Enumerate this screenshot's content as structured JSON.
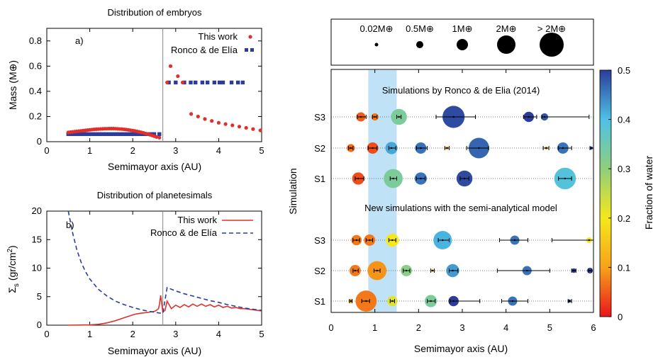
{
  "colors": {
    "red": "#e0302a",
    "blue": "#2b3d99",
    "band": "#bfe2f7",
    "vline": "#888888"
  },
  "chart_data": [
    {
      "type": "scatter",
      "panel_label": "a)",
      "title": "Distribution of embryos",
      "xlabel": "Semimayor axis (AU)",
      "ylabel": "Mass (M⊕)",
      "xlim": [
        0,
        5
      ],
      "ylim": [
        0,
        0.9
      ],
      "xticks": [
        "0",
        "1",
        "2",
        "3",
        "4",
        "5"
      ],
      "yticks": [
        "0",
        "0.2",
        "0.4",
        "0.6",
        "0.8"
      ],
      "vline_x": 2.7,
      "legend_position": "top-right",
      "series": [
        {
          "name": "This work",
          "marker": "circle",
          "color": "#e0302a",
          "x": [
            0.5,
            0.55,
            0.6,
            0.65,
            0.7,
            0.75,
            0.8,
            0.85,
            0.9,
            0.95,
            1.0,
            1.05,
            1.1,
            1.15,
            1.2,
            1.25,
            1.3,
            1.35,
            1.4,
            1.45,
            1.5,
            1.55,
            1.6,
            1.65,
            1.7,
            1.75,
            1.8,
            1.85,
            1.9,
            1.95,
            2.0,
            2.05,
            2.1,
            2.15,
            2.2,
            2.25,
            2.3,
            2.35,
            2.4,
            2.45,
            2.5,
            2.55,
            2.62,
            2.8,
            2.88,
            3.05,
            3.16,
            3.36,
            3.52,
            3.68,
            3.84,
            4.0,
            4.16,
            4.32,
            4.48,
            4.64,
            4.8,
            4.97
          ],
          "y": [
            0.074,
            0.076,
            0.078,
            0.08,
            0.082,
            0.084,
            0.086,
            0.088,
            0.09,
            0.092,
            0.094,
            0.096,
            0.098,
            0.099,
            0.1,
            0.101,
            0.102,
            0.103,
            0.103,
            0.104,
            0.104,
            0.104,
            0.103,
            0.102,
            0.101,
            0.1,
            0.098,
            0.096,
            0.094,
            0.091,
            0.088,
            0.085,
            0.082,
            0.078,
            0.074,
            0.07,
            0.065,
            0.06,
            0.055,
            0.05,
            0.044,
            0.038,
            0.032,
            0.47,
            0.6,
            0.52,
            0.47,
            0.22,
            0.2,
            0.18,
            0.165,
            0.15,
            0.14,
            0.13,
            0.12,
            0.11,
            0.1,
            0.09
          ]
        },
        {
          "name": "Ronco & de Elía",
          "marker": "square",
          "color": "#2b3d99",
          "x": [
            0.5,
            0.58,
            0.66,
            0.74,
            0.82,
            0.9,
            0.98,
            1.06,
            1.14,
            1.22,
            1.3,
            1.38,
            1.46,
            1.54,
            1.62,
            1.7,
            1.78,
            1.86,
            1.94,
            2.02,
            2.1,
            2.18,
            2.26,
            2.34,
            2.42,
            2.5,
            2.62,
            2.84,
            3.0,
            3.2,
            3.35,
            3.46,
            3.62,
            3.74,
            3.9,
            4.02,
            4.1,
            4.3,
            4.45,
            4.56
          ],
          "y": [
            0.06,
            0.06,
            0.06,
            0.06,
            0.06,
            0.06,
            0.06,
            0.06,
            0.06,
            0.06,
            0.06,
            0.06,
            0.06,
            0.06,
            0.06,
            0.06,
            0.06,
            0.06,
            0.06,
            0.06,
            0.06,
            0.06,
            0.06,
            0.06,
            0.06,
            0.06,
            0.06,
            0.47,
            0.47,
            0.47,
            0.47,
            0.47,
            0.47,
            0.47,
            0.47,
            0.47,
            0.47,
            0.47,
            0.47,
            0.47
          ]
        }
      ]
    },
    {
      "type": "line",
      "panel_label": "b)",
      "title": "Distribution of planetesimals",
      "xlabel": "Semimayor axis (AU)",
      "ylabel": "Σs (gr/cm2)",
      "xlim": [
        0,
        5
      ],
      "ylim": [
        0,
        20
      ],
      "xticks": [
        "0",
        "1",
        "2",
        "3",
        "4",
        "5"
      ],
      "yticks": [
        "0",
        "5",
        "10",
        "15",
        "20"
      ],
      "vline_x": 2.7,
      "legend_position": "top-right",
      "series": [
        {
          "name": "This work",
          "style": "solid",
          "color": "#e0302a",
          "x": [
            0.5,
            0.8,
            1.0,
            1.2,
            1.4,
            1.6,
            1.8,
            2.0,
            2.1,
            2.2,
            2.3,
            2.4,
            2.5,
            2.55,
            2.6,
            2.62,
            2.65,
            2.7,
            2.75,
            2.8,
            2.9,
            3.0,
            3.1,
            3.2,
            3.3,
            3.4,
            3.5,
            3.6,
            3.7,
            3.8,
            3.9,
            4.0,
            4.1,
            4.2,
            4.3,
            4.4,
            4.5,
            4.6,
            4.7,
            4.8,
            4.9,
            5.0
          ],
          "y": [
            0.0,
            0.02,
            0.05,
            0.15,
            0.4,
            0.8,
            1.3,
            1.8,
            2.0,
            2.1,
            2.2,
            2.3,
            2.4,
            2.6,
            2.9,
            3.6,
            5.2,
            2.3,
            2.6,
            4.2,
            2.9,
            3.5,
            3.1,
            3.6,
            3.2,
            3.7,
            3.3,
            3.7,
            3.3,
            3.6,
            3.2,
            3.5,
            3.1,
            3.3,
            3.0,
            3.1,
            2.9,
            2.9,
            2.8,
            2.7,
            2.6,
            2.5
          ]
        },
        {
          "name": "Ronco & de Elía",
          "style": "dashed",
          "color": "#2b3d99",
          "x": [
            0.5,
            0.6,
            0.7,
            0.8,
            0.9,
            1.0,
            1.2,
            1.4,
            1.6,
            1.8,
            2.0,
            2.2,
            2.4,
            2.6,
            2.7,
            2.8,
            3.0,
            3.2,
            3.4,
            3.6,
            3.8,
            4.0,
            4.2,
            4.4,
            4.6,
            4.8,
            5.0
          ],
          "y": [
            20.5,
            16.2,
            13.2,
            11.0,
            9.4,
            8.1,
            6.3,
            5.1,
            4.2,
            3.6,
            3.1,
            2.7,
            2.4,
            2.15,
            2.05,
            6.6,
            6.0,
            5.5,
            5.1,
            4.7,
            4.3,
            4.0,
            3.6,
            3.3,
            3.0,
            2.8,
            2.6
          ]
        }
      ]
    },
    {
      "type": "scatter",
      "title": "",
      "xlabel": "Semimayor axis (AU)",
      "ylabel": "Simulation",
      "xlim": [
        0,
        6
      ],
      "xticks": [
        "0",
        "1",
        "2",
        "3",
        "4",
        "5",
        "6"
      ],
      "highlight_band_x": [
        0.85,
        1.5
      ],
      "colorbar": {
        "label": "Fraction of water",
        "range": [
          0,
          0.5
        ],
        "ticks": [
          "0",
          "0.1",
          "0.2",
          "0.3",
          "0.4",
          "0.5"
        ]
      },
      "size_legend": [
        "0.02M⊕",
        "0.5M⊕",
        "1M⊕",
        "2M⊕",
        "> 2M⊕"
      ],
      "groups": [
        {
          "heading": "Simulations by Ronco & de Elia (2014)",
          "rows": [
            {
              "label": "S3",
              "planets": [
                {
                  "a": 0.68,
                  "m": 0.4,
                  "w": 0.05,
                  "lo": 0.6,
                  "hi": 0.8
                },
                {
                  "a": 1.0,
                  "m": 0.25,
                  "w": 0.07,
                  "lo": 0.95,
                  "hi": 1.05
                },
                {
                  "a": 1.55,
                  "m": 1.2,
                  "w": 0.33,
                  "lo": 1.5,
                  "hi": 1.6
                },
                {
                  "a": 2.8,
                  "m": 2.3,
                  "w": 0.49,
                  "lo": 2.4,
                  "hi": 3.3
                },
                {
                  "a": 4.52,
                  "m": 0.5,
                  "w": 0.5,
                  "lo": 4.4,
                  "hi": 4.7
                },
                {
                  "a": 4.88,
                  "m": 0.25,
                  "w": 0.48,
                  "lo": 4.82,
                  "hi": 5.9
                }
              ]
            },
            {
              "label": "S2",
              "planets": [
                {
                  "a": 0.45,
                  "m": 0.3,
                  "w": 0.06,
                  "lo": 0.4,
                  "hi": 0.5
                },
                {
                  "a": 0.95,
                  "m": 0.6,
                  "w": 0.04,
                  "lo": 0.85,
                  "hi": 1.05
                },
                {
                  "a": 1.38,
                  "m": 0.7,
                  "w": 0.42,
                  "lo": 1.32,
                  "hi": 1.48
                },
                {
                  "a": 2.05,
                  "m": 0.6,
                  "w": 0.46,
                  "lo": 1.95,
                  "hi": 2.2
                },
                {
                  "a": 2.65,
                  "m": 0.05,
                  "w": 0.12,
                  "lo": 2.6,
                  "hi": 2.7
                },
                {
                  "a": 3.38,
                  "m": 2.0,
                  "w": 0.47,
                  "lo": 3.1,
                  "hi": 3.6
                },
                {
                  "a": 4.92,
                  "m": 0.05,
                  "w": 0.12,
                  "lo": 4.85,
                  "hi": 4.98
                },
                {
                  "a": 5.3,
                  "m": 0.6,
                  "w": 0.46,
                  "lo": 5.2,
                  "hi": 5.5
                },
                {
                  "a": 5.95,
                  "m": 0.05,
                  "w": 0.48,
                  "lo": 5.92,
                  "hi": 6.0
                }
              ]
            },
            {
              "label": "S1",
              "planets": [
                {
                  "a": 0.62,
                  "m": 0.7,
                  "w": 0.04,
                  "lo": 0.55,
                  "hi": 0.75
                },
                {
                  "a": 1.42,
                  "m": 1.7,
                  "w": 0.33,
                  "lo": 1.35,
                  "hi": 1.5
                },
                {
                  "a": 2.05,
                  "m": 0.7,
                  "w": 0.46,
                  "lo": 1.95,
                  "hi": 2.15
                },
                {
                  "a": 3.05,
                  "m": 1.2,
                  "w": 0.49,
                  "lo": 2.95,
                  "hi": 3.15
                },
                {
                  "a": 5.35,
                  "m": 2.2,
                  "w": 0.39,
                  "lo": 5.2,
                  "hi": 5.5
                }
              ]
            }
          ]
        },
        {
          "heading": "New simulations with the semi-analytical model",
          "rows": [
            {
              "label": "S3",
              "planets": [
                {
                  "a": 0.58,
                  "m": 0.5,
                  "w": 0.07,
                  "lo": 0.5,
                  "hi": 0.65
                },
                {
                  "a": 0.88,
                  "m": 0.6,
                  "w": 0.07,
                  "lo": 0.8,
                  "hi": 0.95
                },
                {
                  "a": 1.4,
                  "m": 0.8,
                  "w": 0.2,
                  "lo": 1.32,
                  "hi": 1.48
                },
                {
                  "a": 2.55,
                  "m": 1.6,
                  "w": 0.41,
                  "lo": 2.45,
                  "hi": 2.7
                },
                {
                  "a": 4.2,
                  "m": 0.4,
                  "w": 0.46,
                  "lo": 3.85,
                  "hi": 4.5
                },
                {
                  "a": 5.9,
                  "m": 0.15,
                  "w": 0.2,
                  "lo": 5.05,
                  "hi": 6.0
                }
              ]
            },
            {
              "label": "S2",
              "planets": [
                {
                  "a": 0.55,
                  "m": 0.6,
                  "w": 0.07,
                  "lo": 0.5,
                  "hi": 0.62
                },
                {
                  "a": 1.05,
                  "m": 1.7,
                  "w": 0.09,
                  "lo": 0.98,
                  "hi": 1.12
                },
                {
                  "a": 1.72,
                  "m": 0.6,
                  "w": 0.31,
                  "lo": 1.65,
                  "hi": 1.8
                },
                {
                  "a": 2.32,
                  "m": 0.04,
                  "w": 0.2,
                  "lo": 2.28,
                  "hi": 2.36
                },
                {
                  "a": 2.78,
                  "m": 0.8,
                  "w": 0.43,
                  "lo": 2.7,
                  "hi": 2.9
                },
                {
                  "a": 4.48,
                  "m": 0.4,
                  "w": 0.46,
                  "lo": 3.8,
                  "hi": 5.0
                },
                {
                  "a": 5.55,
                  "m": 0.1,
                  "w": 0.5,
                  "lo": 5.5,
                  "hi": 5.6
                },
                {
                  "a": 5.92,
                  "m": 0.15,
                  "w": 0.5,
                  "lo": 5.88,
                  "hi": 5.96
                }
              ]
            },
            {
              "label": "S1",
              "planets": [
                {
                  "a": 0.45,
                  "m": 0.1,
                  "w": 0.15,
                  "lo": 0.42,
                  "hi": 0.48
                },
                {
                  "a": 0.8,
                  "m": 2.1,
                  "w": 0.07,
                  "lo": 0.7,
                  "hi": 0.88
                },
                {
                  "a": 1.4,
                  "m": 0.5,
                  "w": 0.22,
                  "lo": 1.35,
                  "hi": 1.45
                },
                {
                  "a": 2.28,
                  "m": 0.7,
                  "w": 0.33,
                  "lo": 2.2,
                  "hi": 2.38
                },
                {
                  "a": 2.8,
                  "m": 0.5,
                  "w": 0.5,
                  "lo": 2.72,
                  "hi": 3.4
                },
                {
                  "a": 4.15,
                  "m": 0.4,
                  "w": 0.46,
                  "lo": 3.9,
                  "hi": 4.5
                },
                {
                  "a": 5.45,
                  "m": 0.05,
                  "w": 0.5,
                  "lo": 5.42,
                  "hi": 5.5
                }
              ]
            }
          ]
        }
      ]
    }
  ]
}
